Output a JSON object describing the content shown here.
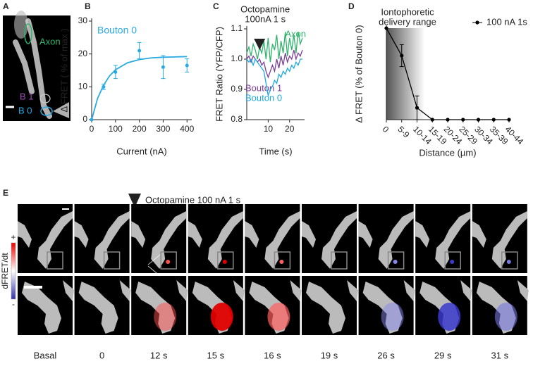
{
  "panel_a": {
    "label": "A",
    "regions": [
      "Axon",
      "B 1",
      "B 0"
    ]
  },
  "chart_data": [
    {
      "type": "scatter",
      "panel": "B",
      "ylabel": "Δ FRET ( % of max )",
      "xlabel": "Current (nA)",
      "xlim": [
        0,
        420
      ],
      "ylim": [
        0,
        30
      ],
      "xticks": [
        0,
        100,
        200,
        300,
        400
      ],
      "yticks": [
        0,
        10,
        20,
        30
      ],
      "series": [
        {
          "name": "Bouton 0",
          "color": "#29abe2",
          "x": [
            0,
            50,
            100,
            200,
            300,
            400
          ],
          "values": [
            0,
            10,
            14.5,
            21,
            16,
            16.5
          ],
          "errors": [
            0,
            0.8,
            2,
            2.5,
            3.5,
            2
          ]
        }
      ],
      "fit": {
        "x": [
          0,
          25,
          50,
          75,
          100,
          150,
          200,
          250,
          300,
          350,
          400
        ],
        "values": [
          0,
          6.5,
          10.5,
          13.3,
          15.2,
          17.3,
          18.3,
          18.8,
          19,
          19.1,
          19.2
        ]
      }
    },
    {
      "type": "line",
      "panel": "C",
      "annotation": [
        "Octopamine",
        "100nA 1 s"
      ],
      "ylabel": "FRET Ratio (YFP/CFP)",
      "xlabel": "Time  (s)",
      "xlim": [
        0,
        27
      ],
      "ylim": [
        0.8,
        1.1
      ],
      "xticks": [
        10,
        20
      ],
      "yticks": [
        0.8,
        0.9,
        {
          "value": 1,
          "label": "1.0"
        },
        1.1
      ],
      "stimulus_at": 6,
      "x": [
        0,
        1,
        2,
        3,
        4,
        5,
        6,
        7,
        8,
        9,
        10,
        11,
        12,
        13,
        14,
        15,
        16,
        17,
        18,
        19,
        20,
        21,
        22,
        23,
        24,
        25,
        26
      ],
      "series": [
        {
          "name": "Axon",
          "color": "#2fb36a",
          "values": [
            1.02,
            1.04,
            1.01,
            1.05,
            1.03,
            1.0,
            1.04,
            1.02,
            1.06,
            1.0,
            1.07,
            0.99,
            1.05,
            1.03,
            1.08,
            1.0,
            1.06,
            1.02,
            1.09,
            1.01,
            1.07,
            1.03,
            1.08,
            1.02,
            1.09,
            1.05,
            1.07
          ]
        },
        {
          "name": "Bouton 1",
          "color": "#7b3f98",
          "values": [
            1.0,
            1.01,
            0.99,
            1.01,
            1.0,
            0.99,
            1.0,
            0.98,
            0.99,
            0.96,
            0.94,
            0.96,
            0.98,
            0.96,
            1.0,
            0.97,
            1.01,
            0.98,
            1.02,
            0.99,
            1.01,
            1.0,
            1.03,
            1.0,
            1.02,
            1.01,
            1.03
          ]
        },
        {
          "name": "Bouton 0",
          "color": "#1fa9e1",
          "values": [
            1.0,
            0.99,
            1.0,
            0.98,
            1.0,
            0.99,
            0.98,
            0.97,
            0.96,
            0.92,
            0.88,
            0.9,
            0.91,
            0.93,
            0.92,
            0.95,
            0.94,
            0.96,
            0.95,
            0.97,
            0.96,
            0.98,
            0.97,
            0.99,
            0.98,
            1.0,
            1.0
          ]
        }
      ]
    },
    {
      "type": "line",
      "panel": "D",
      "annotation": [
        "Iontophoretic",
        "delivery range"
      ],
      "ylabel": "Δ FRET (% of  Bouton 0)",
      "xlabel": "Distance (µm)",
      "ylim": [
        0,
        100
      ],
      "categories": [
        "0",
        "5-9",
        "10-14",
        "15-19",
        "20-24",
        "25-29",
        "30-34",
        "35-39",
        "40-44"
      ],
      "series": [
        {
          "name": "100 nA 1s",
          "color": "#000000",
          "values": [
            100,
            70,
            13,
            0,
            0,
            0,
            0,
            0,
            0
          ],
          "errors": [
            0,
            12,
            13,
            0,
            0,
            0,
            0,
            0,
            0
          ]
        }
      ]
    }
  ],
  "panel_e": {
    "label": "E",
    "stimulus": "Octopamine 100 nA 1 s",
    "colorbar": {
      "title": "dFRET/dt",
      "max": "+",
      "min": "-"
    },
    "frames": [
      "Basal",
      "0",
      "12 s",
      "15 s",
      "16 s",
      "19 s",
      "26 s",
      "29 s",
      "31 s"
    ]
  }
}
